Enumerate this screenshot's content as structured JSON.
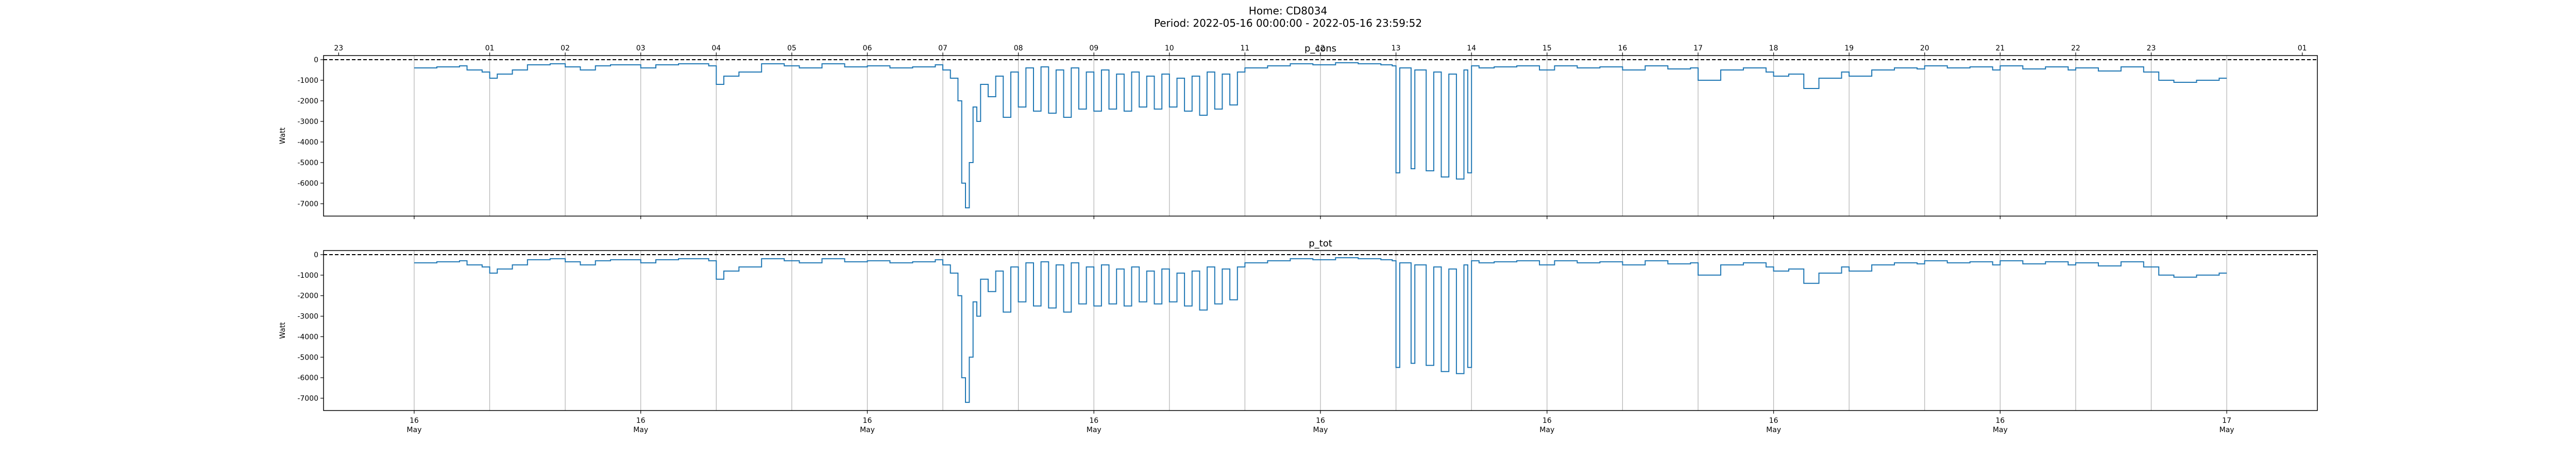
{
  "figure": {
    "title_line1": "Home: CD8034",
    "title_line2": "Period: 2022-05-16 00:00:00 - 2022-05-16 23:59:52"
  },
  "colors": {
    "series": "#1f77b4",
    "grid": "#b0b0b0",
    "zero_line": "#000000"
  },
  "chart_data": [
    {
      "type": "line",
      "title": "p_cons",
      "ylabel": "Watt",
      "ylim": [
        -7600,
        200
      ],
      "yticks": [
        0,
        -1000,
        -2000,
        -3000,
        -4000,
        -5000,
        -6000,
        -7000
      ],
      "xlim_hours": [
        -1.2,
        25.2
      ],
      "vertical_grid_hours": [
        0,
        1,
        2,
        3,
        4,
        5,
        6,
        7,
        8,
        9,
        10,
        11,
        12,
        13,
        14,
        15,
        16,
        17,
        18,
        19,
        20,
        21,
        22,
        23,
        24
      ],
      "hour_tick_labels": [
        "23",
        "01",
        "02",
        "03",
        "04",
        "05",
        "06",
        "07",
        "08",
        "09",
        "10",
        "11",
        "12",
        "13",
        "14",
        "15",
        "16",
        "17",
        "18",
        "19",
        "20",
        "21",
        "22",
        "23",
        "01"
      ],
      "hour_tick_positions": [
        -1,
        1,
        2,
        3,
        4,
        5,
        6,
        7,
        8,
        9,
        10,
        11,
        12,
        13,
        14,
        15,
        16,
        17,
        18,
        19,
        20,
        21,
        22,
        23,
        25
      ],
      "reference_line": 0,
      "x_hours": [
        0,
        0.3,
        0.6,
        0.7,
        0.9,
        1.0,
        1.1,
        1.3,
        1.5,
        1.8,
        2.0,
        2.2,
        2.4,
        2.6,
        3.0,
        3.2,
        3.5,
        3.9,
        4.0,
        4.1,
        4.3,
        4.6,
        4.9,
        5.1,
        5.4,
        5.7,
        6.0,
        6.3,
        6.6,
        6.9,
        7.0,
        7.1,
        7.2,
        7.25,
        7.3,
        7.35,
        7.4,
        7.45,
        7.5,
        7.6,
        7.7,
        7.8,
        7.9,
        8.0,
        8.1,
        8.2,
        8.3,
        8.4,
        8.5,
        8.6,
        8.7,
        8.8,
        8.9,
        9.0,
        9.1,
        9.2,
        9.3,
        9.4,
        9.5,
        9.6,
        9.7,
        9.8,
        9.9,
        10.0,
        10.1,
        10.2,
        10.3,
        10.4,
        10.5,
        10.6,
        10.7,
        10.8,
        10.9,
        11.0,
        11.3,
        11.6,
        11.9,
        12.2,
        12.5,
        12.8,
        12.95,
        13.0,
        13.05,
        13.2,
        13.25,
        13.3,
        13.4,
        13.5,
        13.55,
        13.6,
        13.7,
        13.8,
        13.9,
        13.95,
        14.0,
        14.1,
        14.3,
        14.6,
        14.9,
        15.1,
        15.4,
        15.7,
        16.0,
        16.3,
        16.6,
        16.9,
        17.0,
        17.3,
        17.6,
        17.9,
        18.0,
        18.2,
        18.4,
        18.6,
        18.9,
        19.0,
        19.3,
        19.6,
        19.9,
        20.0,
        20.3,
        20.6,
        20.9,
        21.0,
        21.3,
        21.6,
        21.9,
        22.0,
        22.3,
        22.6,
        22.9,
        23.1,
        23.3,
        23.6,
        23.9,
        24.0
      ],
      "values": [
        -400,
        -350,
        -300,
        -500,
        -600,
        -900,
        -700,
        -500,
        -250,
        -200,
        -350,
        -500,
        -300,
        -250,
        -400,
        -250,
        -200,
        -300,
        -1200,
        -800,
        -600,
        -200,
        -300,
        -400,
        -200,
        -350,
        -300,
        -400,
        -350,
        -250,
        -500,
        -900,
        -2000,
        -6000,
        -7200,
        -5000,
        -2300,
        -3000,
        -1200,
        -1800,
        -800,
        -2800,
        -600,
        -2300,
        -400,
        -2500,
        -350,
        -2600,
        -500,
        -2800,
        -400,
        -2400,
        -600,
        -2500,
        -500,
        -2400,
        -700,
        -2500,
        -600,
        -2300,
        -800,
        -2400,
        -700,
        -2300,
        -900,
        -2500,
        -800,
        -2700,
        -600,
        -2400,
        -700,
        -2200,
        -600,
        -400,
        -300,
        -200,
        -250,
        -150,
        -200,
        -250,
        -300,
        -5500,
        -400,
        -5300,
        -500,
        -500,
        -5400,
        -600,
        -600,
        -5700,
        -700,
        -5800,
        -500,
        -5500,
        -300,
        -400,
        -350,
        -300,
        -500,
        -300,
        -400,
        -350,
        -500,
        -300,
        -450,
        -400,
        -1000,
        -500,
        -400,
        -600,
        -800,
        -700,
        -1400,
        -900,
        -600,
        -800,
        -500,
        -400,
        -450,
        -300,
        -400,
        -350,
        -500,
        -300,
        -450,
        -350,
        -500,
        -400,
        -550,
        -350,
        -600,
        -1000,
        -1100,
        -1000,
        -900,
        -900
      ]
    },
    {
      "type": "line",
      "title": "p_tot",
      "ylabel": "Watt",
      "ylim": [
        -7600,
        200
      ],
      "yticks": [
        0,
        -1000,
        -2000,
        -3000,
        -4000,
        -5000,
        -6000,
        -7000
      ],
      "xlim_hours": [
        -1.2,
        25.2
      ],
      "vertical_grid_hours": [
        0,
        1,
        2,
        3,
        4,
        5,
        6,
        7,
        8,
        9,
        10,
        11,
        12,
        13,
        14,
        15,
        16,
        17,
        18,
        19,
        20,
        21,
        22,
        23,
        24
      ],
      "reference_line": 0,
      "day_tick_positions": [
        0,
        3,
        6,
        9,
        12,
        15,
        18,
        21,
        24
      ],
      "day_tick_labels": [
        {
          "day": "16",
          "month": "May"
        },
        {
          "day": "16",
          "month": "May"
        },
        {
          "day": "16",
          "month": "May"
        },
        {
          "day": "16",
          "month": "May"
        },
        {
          "day": "16",
          "month": "May"
        },
        {
          "day": "16",
          "month": "May"
        },
        {
          "day": "16",
          "month": "May"
        },
        {
          "day": "16",
          "month": "May"
        },
        {
          "day": "17",
          "month": "May"
        }
      ],
      "x_hours": [
        0,
        0.3,
        0.6,
        0.7,
        0.9,
        1.0,
        1.1,
        1.3,
        1.5,
        1.8,
        2.0,
        2.2,
        2.4,
        2.6,
        3.0,
        3.2,
        3.5,
        3.9,
        4.0,
        4.1,
        4.3,
        4.6,
        4.9,
        5.1,
        5.4,
        5.7,
        6.0,
        6.3,
        6.6,
        6.9,
        7.0,
        7.1,
        7.2,
        7.25,
        7.3,
        7.35,
        7.4,
        7.45,
        7.5,
        7.6,
        7.7,
        7.8,
        7.9,
        8.0,
        8.1,
        8.2,
        8.3,
        8.4,
        8.5,
        8.6,
        8.7,
        8.8,
        8.9,
        9.0,
        9.1,
        9.2,
        9.3,
        9.4,
        9.5,
        9.6,
        9.7,
        9.8,
        9.9,
        10.0,
        10.1,
        10.2,
        10.3,
        10.4,
        10.5,
        10.6,
        10.7,
        10.8,
        10.9,
        11.0,
        11.3,
        11.6,
        11.9,
        12.2,
        12.5,
        12.8,
        12.95,
        13.0,
        13.05,
        13.2,
        13.25,
        13.3,
        13.4,
        13.5,
        13.55,
        13.6,
        13.7,
        13.8,
        13.9,
        13.95,
        14.0,
        14.1,
        14.3,
        14.6,
        14.9,
        15.1,
        15.4,
        15.7,
        16.0,
        16.3,
        16.6,
        16.9,
        17.0,
        17.3,
        17.6,
        17.9,
        18.0,
        18.2,
        18.4,
        18.6,
        18.9,
        19.0,
        19.3,
        19.6,
        19.9,
        20.0,
        20.3,
        20.6,
        20.9,
        21.0,
        21.3,
        21.6,
        21.9,
        22.0,
        22.3,
        22.6,
        22.9,
        23.1,
        23.3,
        23.6,
        23.9,
        24.0
      ],
      "values": [
        -400,
        -350,
        -300,
        -500,
        -600,
        -900,
        -700,
        -500,
        -250,
        -200,
        -350,
        -500,
        -300,
        -250,
        -400,
        -250,
        -200,
        -300,
        -1200,
        -800,
        -600,
        -200,
        -300,
        -400,
        -200,
        -350,
        -300,
        -400,
        -350,
        -250,
        -500,
        -900,
        -2000,
        -6000,
        -7200,
        -5000,
        -2300,
        -3000,
        -1200,
        -1800,
        -800,
        -2800,
        -600,
        -2300,
        -400,
        -2500,
        -350,
        -2600,
        -500,
        -2800,
        -400,
        -2400,
        -600,
        -2500,
        -500,
        -2400,
        -700,
        -2500,
        -600,
        -2300,
        -800,
        -2400,
        -700,
        -2300,
        -900,
        -2500,
        -800,
        -2700,
        -600,
        -2400,
        -700,
        -2200,
        -600,
        -400,
        -300,
        -200,
        -250,
        -150,
        -200,
        -250,
        -300,
        -5500,
        -400,
        -5300,
        -500,
        -500,
        -5400,
        -600,
        -600,
        -5700,
        -700,
        -5800,
        -500,
        -5500,
        -300,
        -400,
        -350,
        -300,
        -500,
        -300,
        -400,
        -350,
        -500,
        -300,
        -450,
        -400,
        -1000,
        -500,
        -400,
        -600,
        -800,
        -700,
        -1400,
        -900,
        -600,
        -800,
        -500,
        -400,
        -450,
        -300,
        -400,
        -350,
        -500,
        -300,
        -450,
        -350,
        -500,
        -400,
        -550,
        -350,
        -600,
        -1000,
        -1100,
        -1000,
        -900,
        -900
      ]
    }
  ]
}
